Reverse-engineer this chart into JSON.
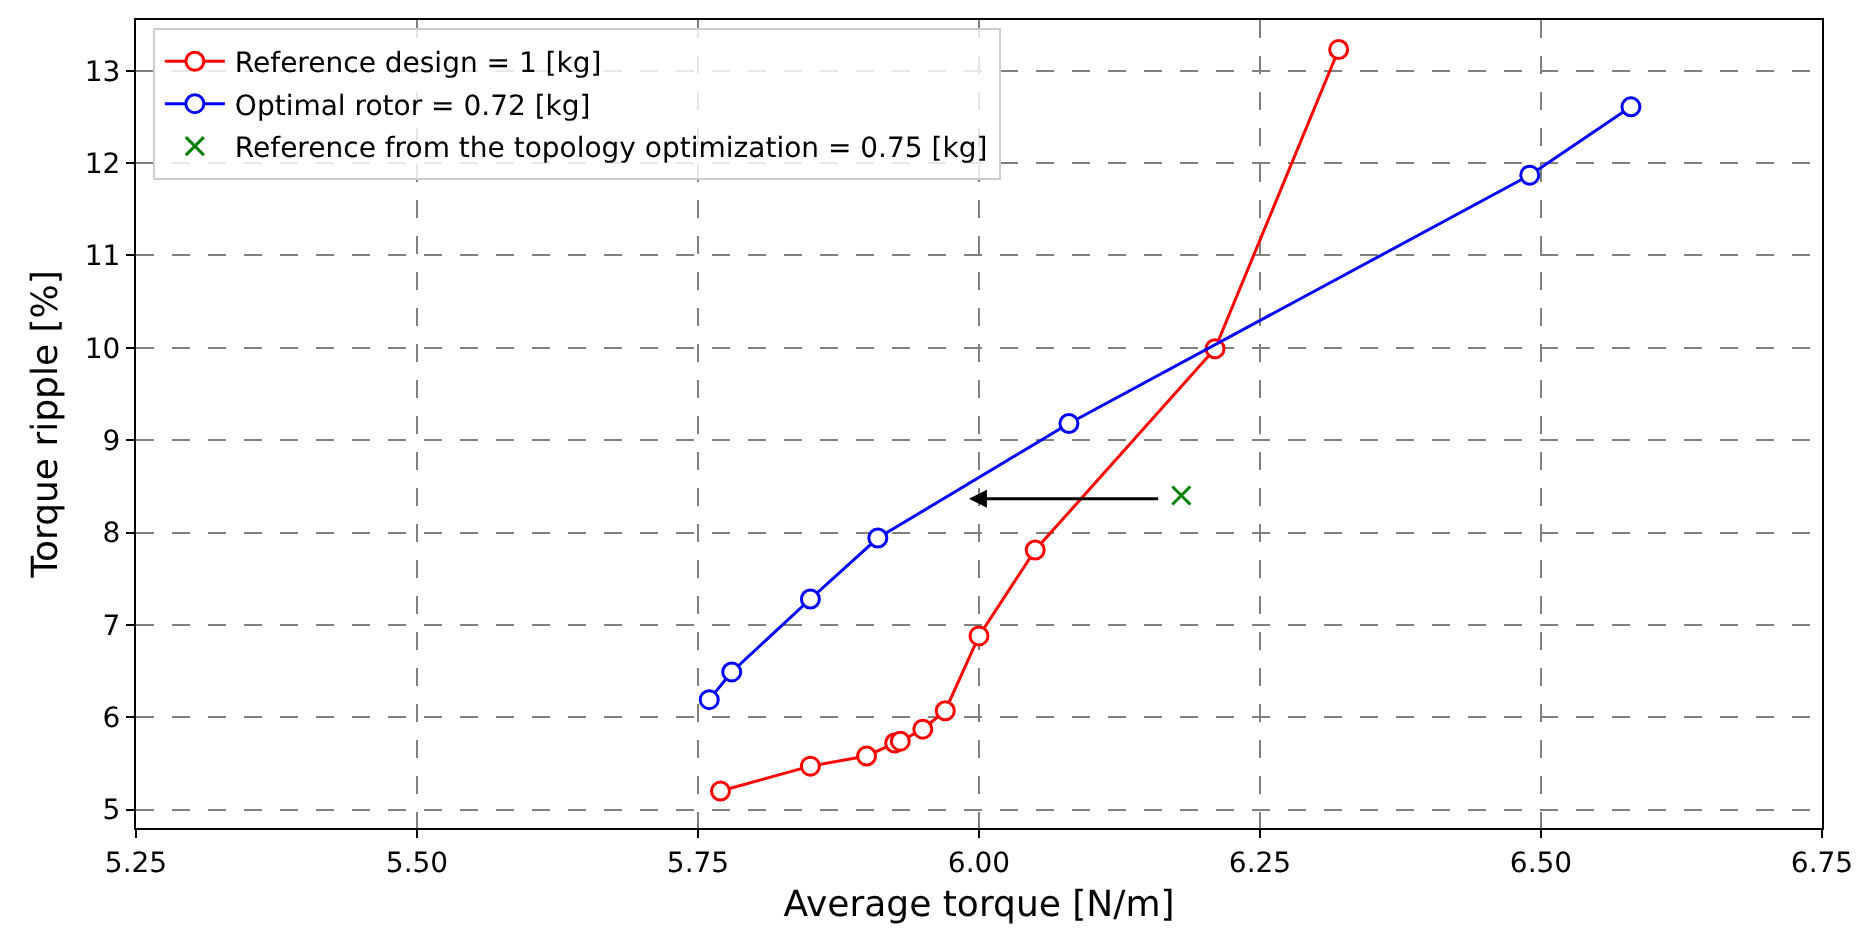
{
  "chart_data": {
    "type": "line",
    "xlabel": "Average torque [N/m]",
    "ylabel": "Torque ripple [%]",
    "xlim": [
      5.25,
      6.75
    ],
    "xticks": [
      5.25,
      {
        "value": 5.5,
        "label": "5.50"
      },
      5.75,
      {
        "value": 6,
        "label": "6.00"
      },
      6.25,
      {
        "value": 6.5,
        "label": "6.50"
      },
      6.75
    ],
    "ylim": [
      4.8,
      13.55
    ],
    "yticks": [
      5,
      6,
      7,
      8,
      9,
      10,
      11,
      12,
      13
    ],
    "grid": true,
    "legend": "top left",
    "marker": "circle",
    "series": [
      {
        "name": "Reference design = 1 [kg]",
        "color": "#ff0000",
        "x": [
          5.77,
          5.85,
          5.9,
          5.925,
          5.93,
          5.95,
          5.97,
          6.0,
          6.05,
          6.21,
          6.32
        ],
        "values": [
          5.2,
          5.47,
          5.58,
          5.72,
          5.74,
          5.87,
          6.07,
          6.88,
          7.81,
          9.99,
          13.23
        ]
      },
      {
        "name": "Optimal rotor = 0.72 [kg]",
        "color": "#0000ff",
        "x": [
          5.76,
          5.78,
          5.85,
          5.91,
          6.08,
          6.49,
          6.58
        ],
        "values": [
          6.19,
          6.49,
          7.28,
          7.94,
          9.18,
          11.87,
          12.61
        ]
      },
      {
        "name": "Reference from the topology optimization = 0.75 [kg]",
        "type": "scatter",
        "marker": "cross",
        "color": "#008000",
        "x": [
          6.18
        ],
        "values": [
          8.4
        ]
      }
    ]
  }
}
